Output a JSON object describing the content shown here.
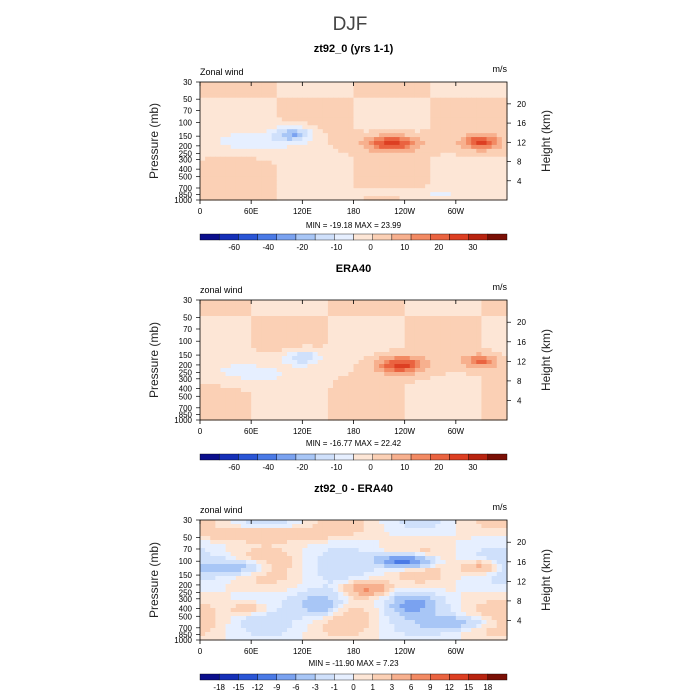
{
  "figure_title": "DJF",
  "chart_data": [
    {
      "type": "heatmap",
      "title": "zt92_0 (yrs 1-1)",
      "left_label": "Zonal wind",
      "right_label": "m/s",
      "ylabel": "Pressure (mb)",
      "ylabel_right": "Height (km)",
      "x_ticks": [
        "0",
        "60E",
        "120E",
        "180",
        "120W",
        "60W"
      ],
      "x_tick_values": [
        0,
        60,
        120,
        180,
        240,
        300
      ],
      "xlim": [
        0,
        360
      ],
      "pressure_ticks": [
        "30",
        "50",
        "70",
        "100",
        "150",
        "200",
        "250",
        "300",
        "400",
        "500",
        "700",
        "850",
        "1000"
      ],
      "pressure_values": [
        30,
        50,
        70,
        100,
        150,
        200,
        250,
        300,
        400,
        500,
        700,
        850,
        1000
      ],
      "height_ticks": [
        "4",
        "8",
        "12",
        "16",
        "20"
      ],
      "height_values": [
        4,
        8,
        12,
        16,
        20
      ],
      "stats": "MIN = -19.18   MAX =  23.99",
      "colorbar_labels": [
        "-60",
        "-40",
        "-20",
        "-10",
        "0",
        "10",
        "20",
        "30"
      ],
      "colorbar_levels": [
        -70,
        -60,
        -50,
        -40,
        -30,
        -20,
        -15,
        -10,
        -5,
        0,
        5,
        10,
        15,
        20,
        25,
        30,
        35
      ],
      "features": [
        {
          "lon": 110,
          "p": 140,
          "value": -19,
          "lon_width": 22,
          "logp_width": 0.22
        },
        {
          "lon": 70,
          "p": 180,
          "value": -8,
          "lon_width": 55,
          "logp_width": 0.3
        },
        {
          "lon": 225,
          "p": 185,
          "value": 24,
          "lon_width": 30,
          "logp_width": 0.24
        },
        {
          "lon": 330,
          "p": 180,
          "value": 20,
          "lon_width": 22,
          "logp_width": 0.22
        },
        {
          "lon": 260,
          "p": 800,
          "value": -6,
          "lon_width": 70,
          "logp_width": 0.12
        }
      ]
    },
    {
      "type": "heatmap",
      "title": "ERA40",
      "left_label": "zonal wind",
      "right_label": "m/s",
      "ylabel": "Pressure (mb)",
      "ylabel_right": "Height (km)",
      "x_ticks": [
        "0",
        "60E",
        "120E",
        "180",
        "120W",
        "60W"
      ],
      "x_tick_values": [
        0,
        60,
        120,
        180,
        240,
        300
      ],
      "xlim": [
        0,
        360
      ],
      "pressure_ticks": [
        "30",
        "50",
        "70",
        "100",
        "150",
        "200",
        "250",
        "300",
        "400",
        "500",
        "700",
        "850",
        "1000"
      ],
      "pressure_values": [
        30,
        50,
        70,
        100,
        150,
        200,
        250,
        300,
        400,
        500,
        700,
        850,
        1000
      ],
      "height_ticks": [
        "4",
        "8",
        "12",
        "16",
        "20"
      ],
      "height_values": [
        4,
        8,
        12,
        16,
        20
      ],
      "stats": "MIN = -16.77   MAX =  22.42",
      "colorbar_labels": [
        "-60",
        "-40",
        "-20",
        "-10",
        "0",
        "10",
        "20",
        "30"
      ],
      "colorbar_levels": [
        -70,
        -60,
        -50,
        -40,
        -30,
        -20,
        -15,
        -10,
        -5,
        0,
        5,
        10,
        15,
        20,
        25,
        30,
        35
      ],
      "features": [
        {
          "lon": 120,
          "p": 160,
          "value": -16,
          "lon_width": 22,
          "logp_width": 0.22
        },
        {
          "lon": 60,
          "p": 250,
          "value": -7,
          "lon_width": 60,
          "logp_width": 0.35
        },
        {
          "lon": 235,
          "p": 200,
          "value": 22,
          "lon_width": 28,
          "logp_width": 0.26
        },
        {
          "lon": 330,
          "p": 180,
          "value": 16,
          "lon_width": 20,
          "logp_width": 0.2
        }
      ]
    },
    {
      "type": "heatmap",
      "title": "zt92_0 - ERA40",
      "left_label": "zonal wind",
      "right_label": "m/s",
      "ylabel": "Pressure (mb)",
      "ylabel_right": "Height (km)",
      "x_ticks": [
        "0",
        "60E",
        "120E",
        "180",
        "120W",
        "60W"
      ],
      "x_tick_values": [
        0,
        60,
        120,
        180,
        240,
        300
      ],
      "xlim": [
        0,
        360
      ],
      "pressure_ticks": [
        "30",
        "50",
        "70",
        "100",
        "150",
        "200",
        "250",
        "300",
        "400",
        "500",
        "700",
        "850",
        "1000"
      ],
      "pressure_values": [
        30,
        50,
        70,
        100,
        150,
        200,
        250,
        300,
        400,
        500,
        700,
        850,
        1000
      ],
      "height_ticks": [
        "4",
        "8",
        "12",
        "16",
        "20"
      ],
      "height_values": [
        4,
        8,
        12,
        16,
        20
      ],
      "stats": "MIN = -11.90   MAX =   7.23",
      "colorbar_labels": [
        "-18",
        "-15",
        "-12",
        "-9",
        "-6",
        "-3",
        "-1",
        "0",
        "1",
        "3",
        "6",
        "9",
        "12",
        "15",
        "18"
      ],
      "colorbar_levels": [
        -21,
        -18,
        -15,
        -12,
        -9,
        -6,
        -3,
        -1,
        0,
        1,
        3,
        6,
        9,
        12,
        15,
        18,
        21
      ],
      "features": [
        {
          "lon": 240,
          "p": 100,
          "value": -12,
          "lon_width": 30,
          "logp_width": 0.18
        },
        {
          "lon": 195,
          "p": 220,
          "value": 7,
          "lon_width": 22,
          "logp_width": 0.2
        },
        {
          "lon": 140,
          "p": 350,
          "value": -6,
          "lon_width": 25,
          "logp_width": 0.35
        },
        {
          "lon": 330,
          "p": 120,
          "value": 5,
          "lon_width": 20,
          "logp_width": 0.2
        },
        {
          "lon": 40,
          "p": 120,
          "value": -5,
          "lon_width": 35,
          "logp_width": 0.2
        },
        {
          "lon": 250,
          "p": 350,
          "value": -7,
          "lon_width": 25,
          "logp_width": 0.3
        },
        {
          "lon": 80,
          "p": 45,
          "value": 3,
          "lon_width": 80,
          "logp_width": 0.2
        },
        {
          "lon": 60,
          "p": 400,
          "value": 3,
          "lon_width": 25,
          "logp_width": 0.2
        },
        {
          "lon": 300,
          "p": 600,
          "value": -4,
          "lon_width": 40,
          "logp_width": 0.2
        }
      ]
    }
  ]
}
